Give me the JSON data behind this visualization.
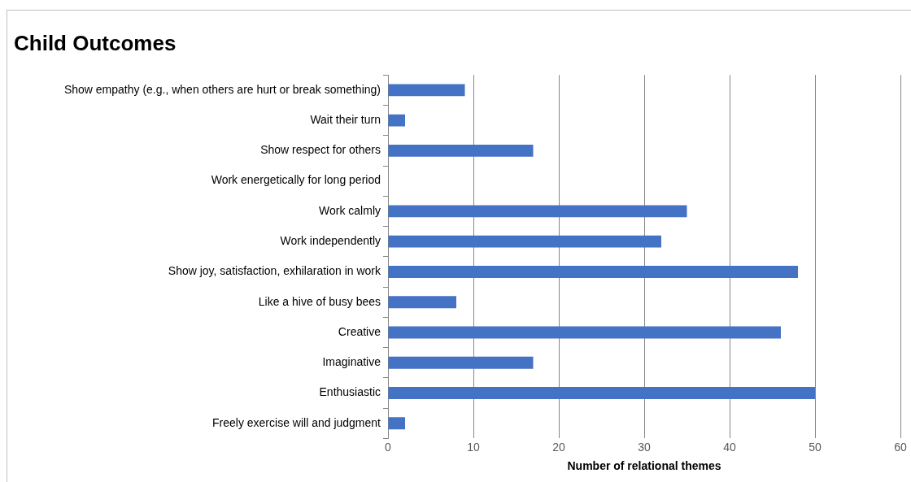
{
  "chart_data": {
    "type": "bar",
    "orientation": "horizontal",
    "title": "Child Outcomes",
    "xlabel": "Number of relational themes",
    "categories": [
      "Show empathy (e.g., when others are hurt or break something)",
      "Wait their turn",
      "Show respect for others",
      "Work energetically for long period",
      "Work calmly",
      "Work independently",
      "Show joy, satisfaction, exhilaration in work",
      "Like a hive of busy bees",
      "Creative",
      "Imaginative",
      "Enthusiastic",
      "Freely exercise will and judgment"
    ],
    "values": [
      9,
      2,
      17,
      0,
      35,
      32,
      48,
      8,
      46,
      17,
      50,
      2
    ],
    "color": "#4472c4",
    "xlim": [
      0,
      60
    ],
    "xticks": [
      0,
      10,
      20,
      30,
      40,
      50,
      60
    ],
    "grid": "x",
    "legend": false
  }
}
